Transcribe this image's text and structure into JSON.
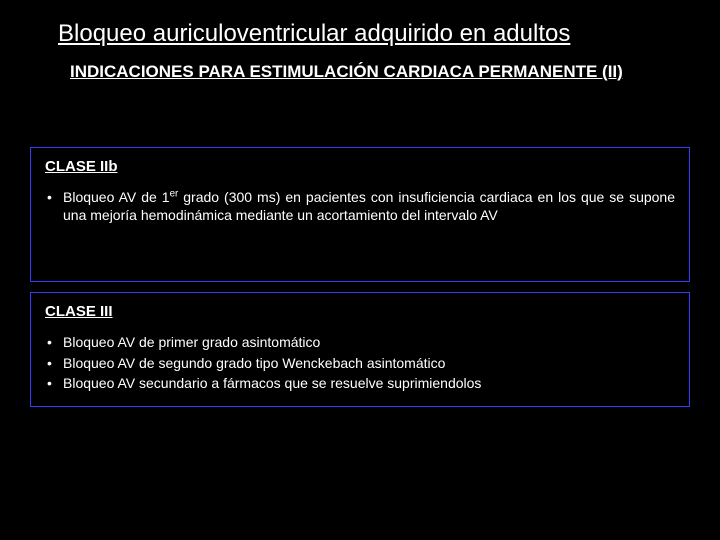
{
  "title": "Bloqueo auriculoventricular adquirido en adultos",
  "subtitle": "INDICACIONES PARA ESTIMULACIÓN CARDIACA PERMANENTE (II)",
  "box1": {
    "class_label": "CLASE IIb",
    "items": [
      "Bloqueo AV de 1er grado (300 ms) en pacientes con insuficiencia cardiaca en los que se supone una mejoría hemodinámica mediante un acortamiento del intervalo AV"
    ]
  },
  "box2": {
    "class_label": "CLASE III",
    "items": [
      "Bloqueo AV de primer grado asintomático",
      "Bloqueo AV de segundo grado tipo Wenckebach asintomático",
      "Bloqueo AV secundario a fármacos que se resuelve suprimiendolos"
    ]
  },
  "colors": {
    "background": "#000000",
    "text": "#ffffff",
    "box_border": "#3a3aff"
  }
}
